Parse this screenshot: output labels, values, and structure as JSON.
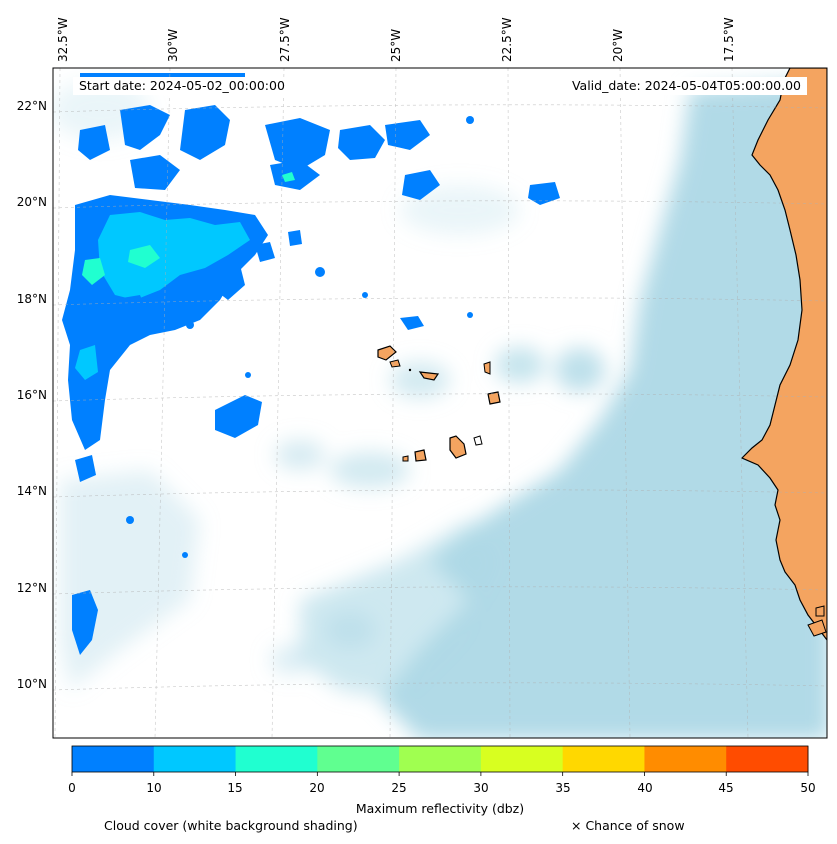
{
  "header": {
    "start_label": "Start date: 2024-05-02_00:00:00",
    "valid_label": "Valid_date: 2024-05-04T05:00:00.00"
  },
  "axes": {
    "lon_labels": [
      "32.5°W",
      "30°W",
      "27.5°W",
      "25°W",
      "22.5°W",
      "20°W",
      "17.5°W"
    ],
    "lat_labels": [
      "22°N",
      "20°N",
      "18°N",
      "16°N",
      "14°N",
      "12°N",
      "10°N"
    ]
  },
  "colorbar": {
    "label": "Maximum reflectivity (dbz)",
    "ticks": [
      "0",
      "10",
      "15",
      "20",
      "25",
      "30",
      "35",
      "40",
      "45",
      "50"
    ],
    "colors": [
      "#0080ff",
      "#00c8ff",
      "#20ffd0",
      "#60ff90",
      "#a0ff50",
      "#d8ff20",
      "#ffd800",
      "#ff8c00",
      "#ff4c00"
    ]
  },
  "footer": {
    "cloud_caption": "Cloud cover (white background shading)",
    "snow_caption": "× Chance of snow"
  },
  "colors": {
    "cloud": "#add8e6",
    "land": "#f4a460",
    "ocean": "#ffffff"
  }
}
